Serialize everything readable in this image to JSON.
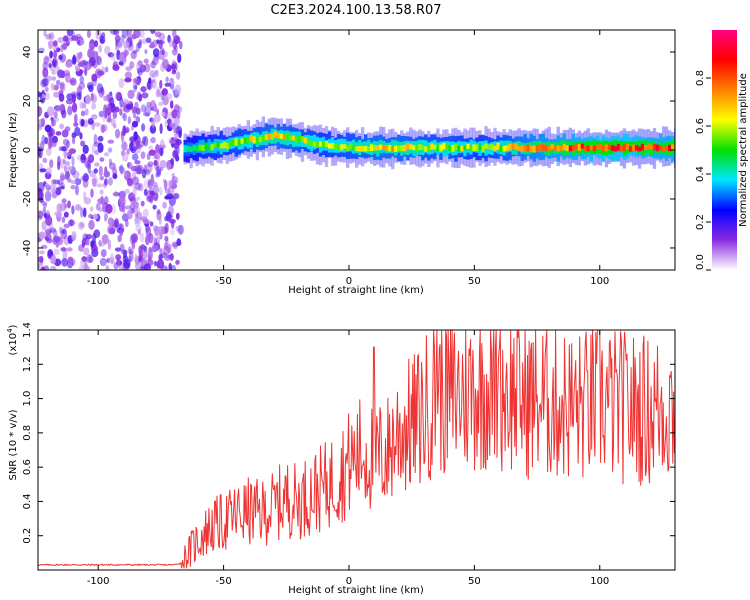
{
  "title": "C2E3.2024.100.13.58.R07",
  "chart_data": [
    {
      "type": "heatmap",
      "xlabel": "Height of straight line (km)",
      "ylabel": "Frequency (Hz)",
      "xlim": [
        -124,
        130
      ],
      "ylim": [
        -49,
        49
      ],
      "xticks": [
        -100,
        -50,
        0,
        50,
        100
      ],
      "xtick_labels": [
        "-100",
        "-50",
        "0",
        "50",
        "100"
      ],
      "yticks": [
        40,
        20,
        0,
        -20,
        -40
      ],
      "ytick_labels": [
        "40",
        "20",
        "0",
        "-20",
        "-40"
      ],
      "noise_region_x": [
        -124,
        -67
      ],
      "ridge": {
        "x": [
          -66,
          -60,
          -50,
          -40,
          -30,
          -20,
          -10,
          0,
          10,
          20,
          30,
          40,
          50,
          60,
          70,
          80,
          90,
          100,
          110,
          120,
          130
        ],
        "frequency_hz": [
          0,
          1,
          2,
          4,
          6,
          4,
          2,
          1,
          1,
          1,
          1,
          1,
          1,
          1,
          1,
          1,
          1,
          1,
          1,
          1,
          1
        ],
        "amplitude": [
          0.4,
          0.5,
          0.55,
          0.6,
          0.65,
          0.6,
          0.55,
          0.6,
          0.65,
          0.65,
          0.6,
          0.6,
          0.55,
          0.6,
          0.7,
          0.75,
          0.8,
          0.85,
          0.85,
          0.8,
          0.8
        ]
      },
      "colorbar": {
        "label": "Normalized spectral amplitude",
        "range": [
          0,
          1
        ],
        "ticks": [
          0.0,
          0.2,
          0.4,
          0.6,
          0.8
        ],
        "tick_labels": [
          "0.0",
          "0.2",
          "0.4",
          "0.6",
          "0.8"
        ],
        "colors": [
          "#ffffff",
          "#8a2be2",
          "#0000ff",
          "#00e5ff",
          "#00e000",
          "#ffff00",
          "#ff8000",
          "#ff0000",
          "#ff0080"
        ]
      }
    },
    {
      "type": "line",
      "xlabel": "Height of straight line (km)",
      "ylabel": "SNR (10 * v/v)",
      "y_multiplier": "(x10",
      "y_multiplier_exp": "4",
      "y_multiplier_close": ")",
      "xlim": [
        -124,
        130
      ],
      "ylim": [
        0,
        14000
      ],
      "xticks": [
        -100,
        -50,
        0,
        50,
        100
      ],
      "xtick_labels": [
        "-100",
        "-50",
        "0",
        "50",
        "100"
      ],
      "yticks": [
        2000,
        4000,
        6000,
        8000,
        10000,
        12000,
        14000
      ],
      "ytick_labels": [
        "0.2",
        "0.4",
        "0.6",
        "0.8",
        "1.0",
        "1.2",
        "1.4"
      ],
      "series": [
        {
          "color": "#ee3333",
          "x": [
            -124,
            -110,
            -100,
            -90,
            -80,
            -70,
            -67,
            -64,
            -60,
            -55,
            -50,
            -45,
            -40,
            -35,
            -30,
            -25,
            -20,
            -15,
            -10,
            -5,
            0,
            5,
            10,
            15,
            20,
            25,
            30,
            35,
            40,
            45,
            50,
            55,
            60,
            65,
            70,
            75,
            80,
            85,
            90,
            95,
            100,
            105,
            110,
            115,
            120,
            125,
            130
          ],
          "y": [
            300,
            300,
            300,
            300,
            300,
            300,
            400,
            1000,
            1800,
            2500,
            2800,
            3200,
            3400,
            3300,
            3700,
            4200,
            4000,
            4500,
            4800,
            5400,
            6200,
            6900,
            6500,
            6800,
            8200,
            8400,
            9200,
            10600,
            10100,
            10300,
            10600,
            10700,
            10800,
            10400,
            10000,
            9900,
            9800,
            9700,
            9500,
            9600,
            10000,
            9600,
            9500,
            9400,
            9300,
            9500,
            9600
          ]
        }
      ],
      "annotations": [
        {
          "x": 10,
          "y": 13000
        },
        {
          "x": 35,
          "y": 14000
        },
        {
          "x": 60,
          "y": 13000
        }
      ]
    }
  ]
}
